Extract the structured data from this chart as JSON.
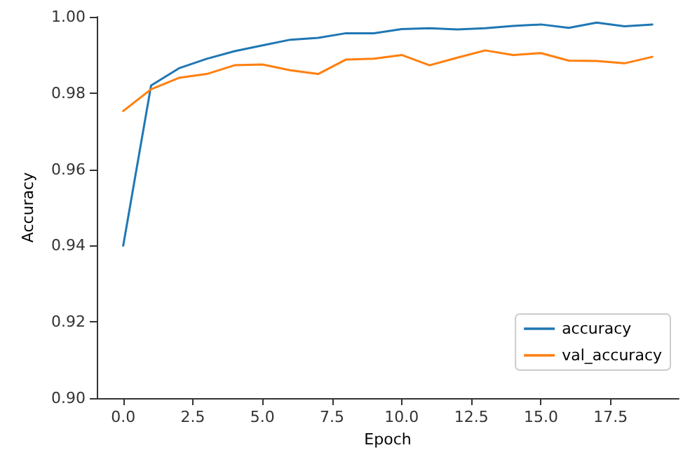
{
  "chart_data": {
    "type": "line",
    "xlabel": "Epoch",
    "ylabel": "Accuracy",
    "x": [
      0,
      1,
      2,
      3,
      4,
      5,
      6,
      7,
      8,
      9,
      10,
      11,
      12,
      13,
      14,
      15,
      16,
      17,
      18,
      19
    ],
    "series": [
      {
        "name": "accuracy",
        "color": "#1f77b4",
        "values": [
          0.94,
          0.982,
          0.9865,
          0.989,
          0.991,
          0.9925,
          0.994,
          0.9945,
          0.9957,
          0.9957,
          0.9968,
          0.997,
          0.9967,
          0.997,
          0.9976,
          0.998,
          0.9971,
          0.9985,
          0.9975,
          0.998
        ]
      },
      {
        "name": "val_accuracy",
        "color": "#ff7f0e",
        "values": [
          0.9753,
          0.981,
          0.984,
          0.985,
          0.9873,
          0.9875,
          0.986,
          0.985,
          0.9888,
          0.989,
          0.99,
          0.9873,
          0.9893,
          0.9912,
          0.99,
          0.9905,
          0.9885,
          0.9884,
          0.9878,
          0.9895
        ]
      }
    ],
    "xlim": [
      -0.95,
      19.95
    ],
    "xticks": [
      {
        "value": 0,
        "label": "0.0"
      },
      {
        "value": 2.5,
        "label": "2.5"
      },
      {
        "value": 5,
        "label": "5.0"
      },
      {
        "value": 7.5,
        "label": "7.5"
      },
      {
        "value": 10,
        "label": "10.0"
      },
      {
        "value": 12.5,
        "label": "12.5"
      },
      {
        "value": 15,
        "label": "15.0"
      },
      {
        "value": 17.5,
        "label": "17.5"
      }
    ],
    "ylim": [
      0.9,
      1.0
    ],
    "yticks": [
      {
        "value": 0.9,
        "label": "0.90"
      },
      {
        "value": 0.92,
        "label": "0.92"
      },
      {
        "value": 0.94,
        "label": "0.94"
      },
      {
        "value": 0.96,
        "label": "0.96"
      },
      {
        "value": 0.98,
        "label": "0.98"
      },
      {
        "value": 1.0,
        "label": "1.00"
      }
    ],
    "legend": "bottom right",
    "marker": "none",
    "line_style": "solid",
    "grid": false
  }
}
